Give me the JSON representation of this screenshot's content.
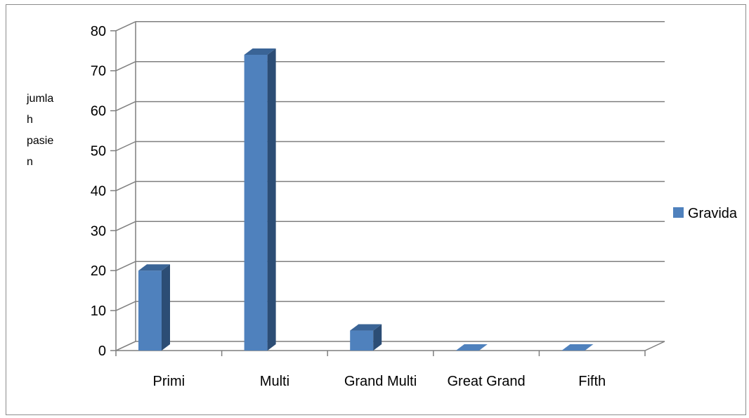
{
  "chart_data": {
    "type": "bar",
    "categories": [
      "Primi",
      "Multi",
      "Grand Multi",
      "Great Grand",
      "Fifth"
    ],
    "series": [
      {
        "name": "Gravida",
        "values": [
          20,
          74,
          5,
          0,
          0
        ]
      }
    ],
    "ylabel_lines": [
      "jumla",
      "h",
      "pasie",
      "n"
    ],
    "yticks": [
      "0",
      "10",
      "20",
      "30",
      "40",
      "50",
      "60",
      "70",
      "80"
    ],
    "ylim": [
      0,
      80
    ],
    "grid": true,
    "legend_position": "right",
    "three_d": true,
    "colors": {
      "bar_front": "#4f81bd",
      "bar_side": "#2c4d75",
      "bar_top": "#3a6496",
      "grid": "#7f7f7f"
    }
  }
}
